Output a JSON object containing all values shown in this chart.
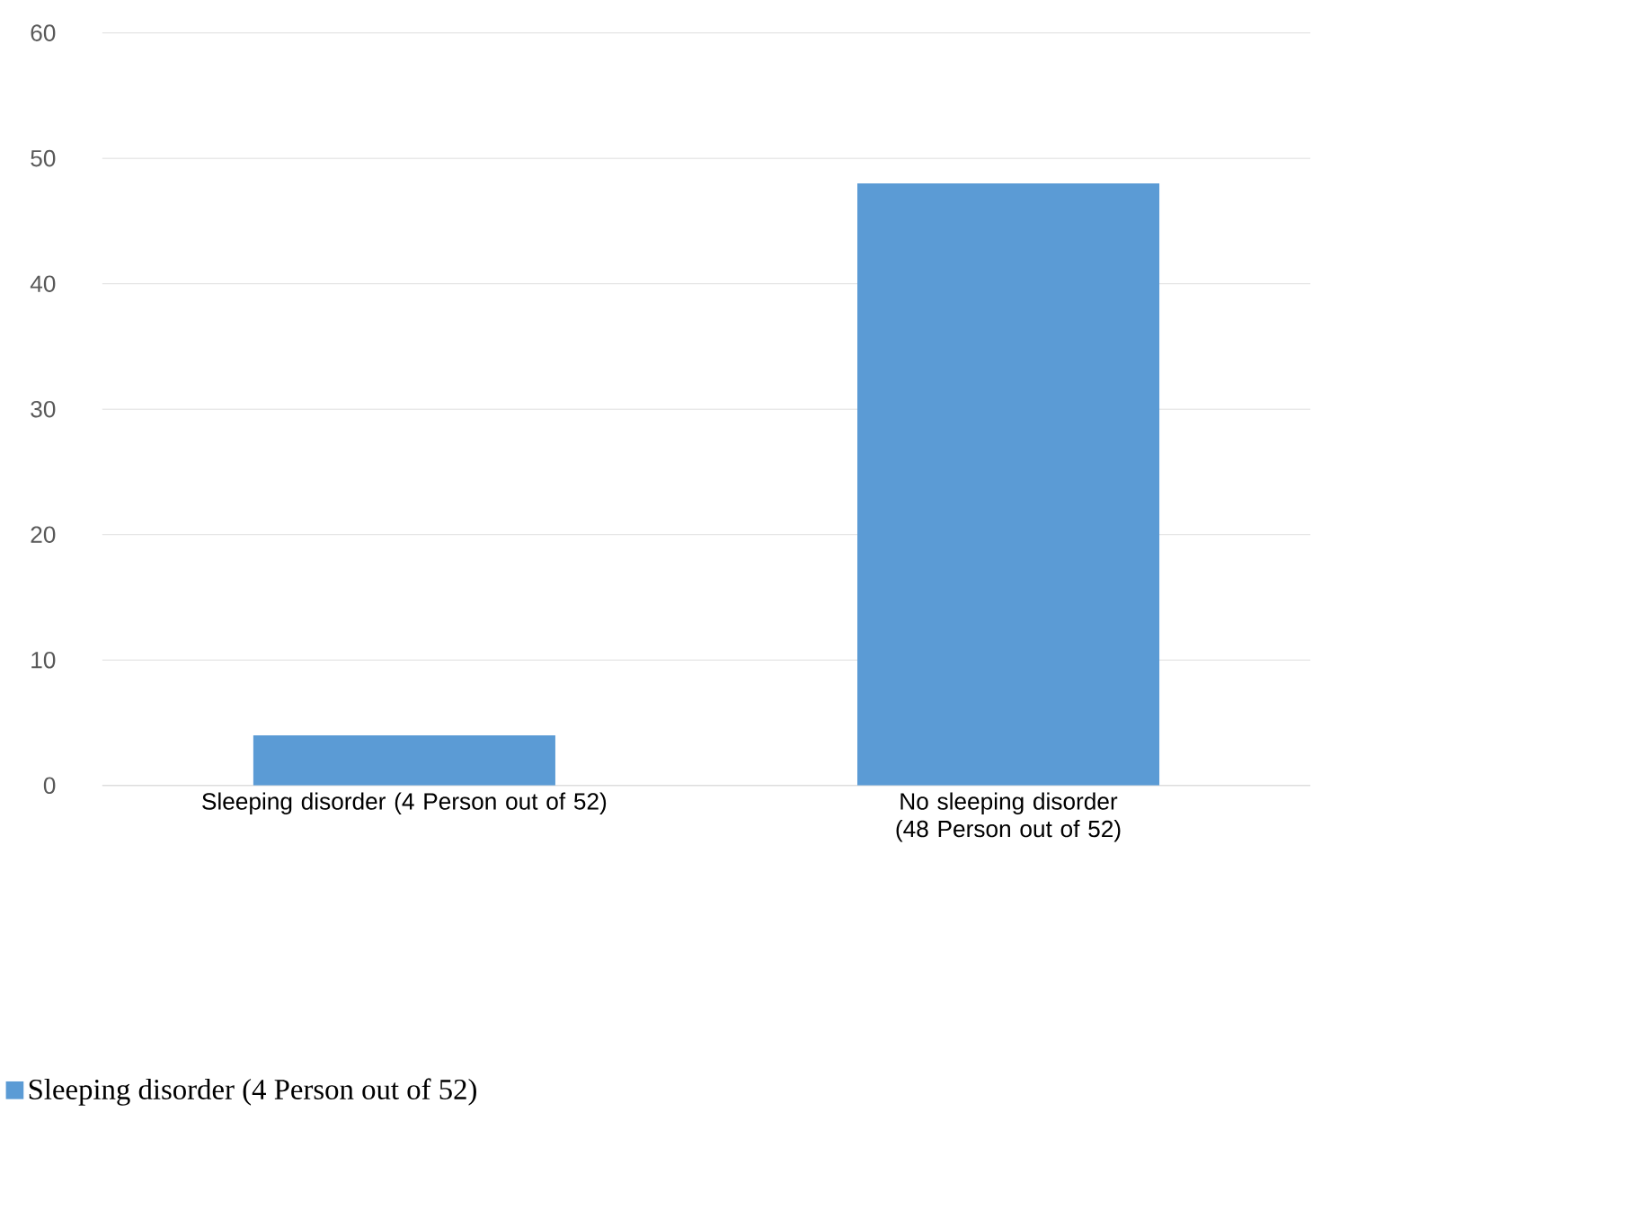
{
  "chart_data": {
    "type": "bar",
    "categories": [
      "Sleeping disorder (4 Person out of 52)",
      "No sleeping disorder (48 Person out of 52)"
    ],
    "series": [
      {
        "name": "Sleeping disorder (4 Person out of 52)",
        "color": "#5b9bd5",
        "values": [
          4,
          48
        ]
      }
    ],
    "ylim": [
      0,
      60
    ],
    "yticks": [
      0,
      10,
      20,
      30,
      40,
      50,
      60
    ],
    "grid": "y",
    "legend": "bottom left"
  }
}
